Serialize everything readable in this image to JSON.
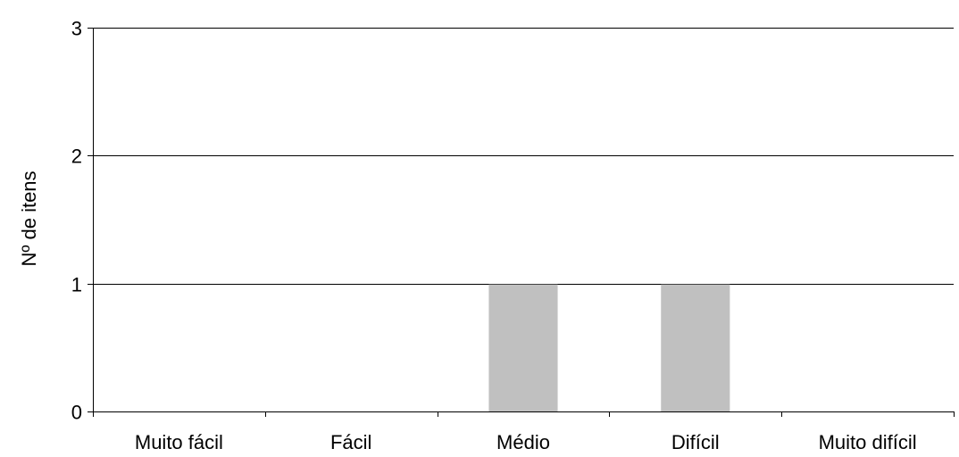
{
  "chart_data": {
    "type": "bar",
    "title": "",
    "xlabel": "",
    "ylabel": "Nº de itens",
    "categories": [
      "Muito fácil",
      "Fácil",
      "Médio",
      "Difícil",
      "Muito difícil"
    ],
    "values": [
      0,
      0,
      1,
      1,
      0
    ],
    "ylim": [
      0,
      3
    ],
    "yticks": [
      "0",
      "1",
      "2",
      "3"
    ],
    "grid": true,
    "legend": "none",
    "bar_color": "#c0c0c0",
    "grid_color": "#000000"
  }
}
